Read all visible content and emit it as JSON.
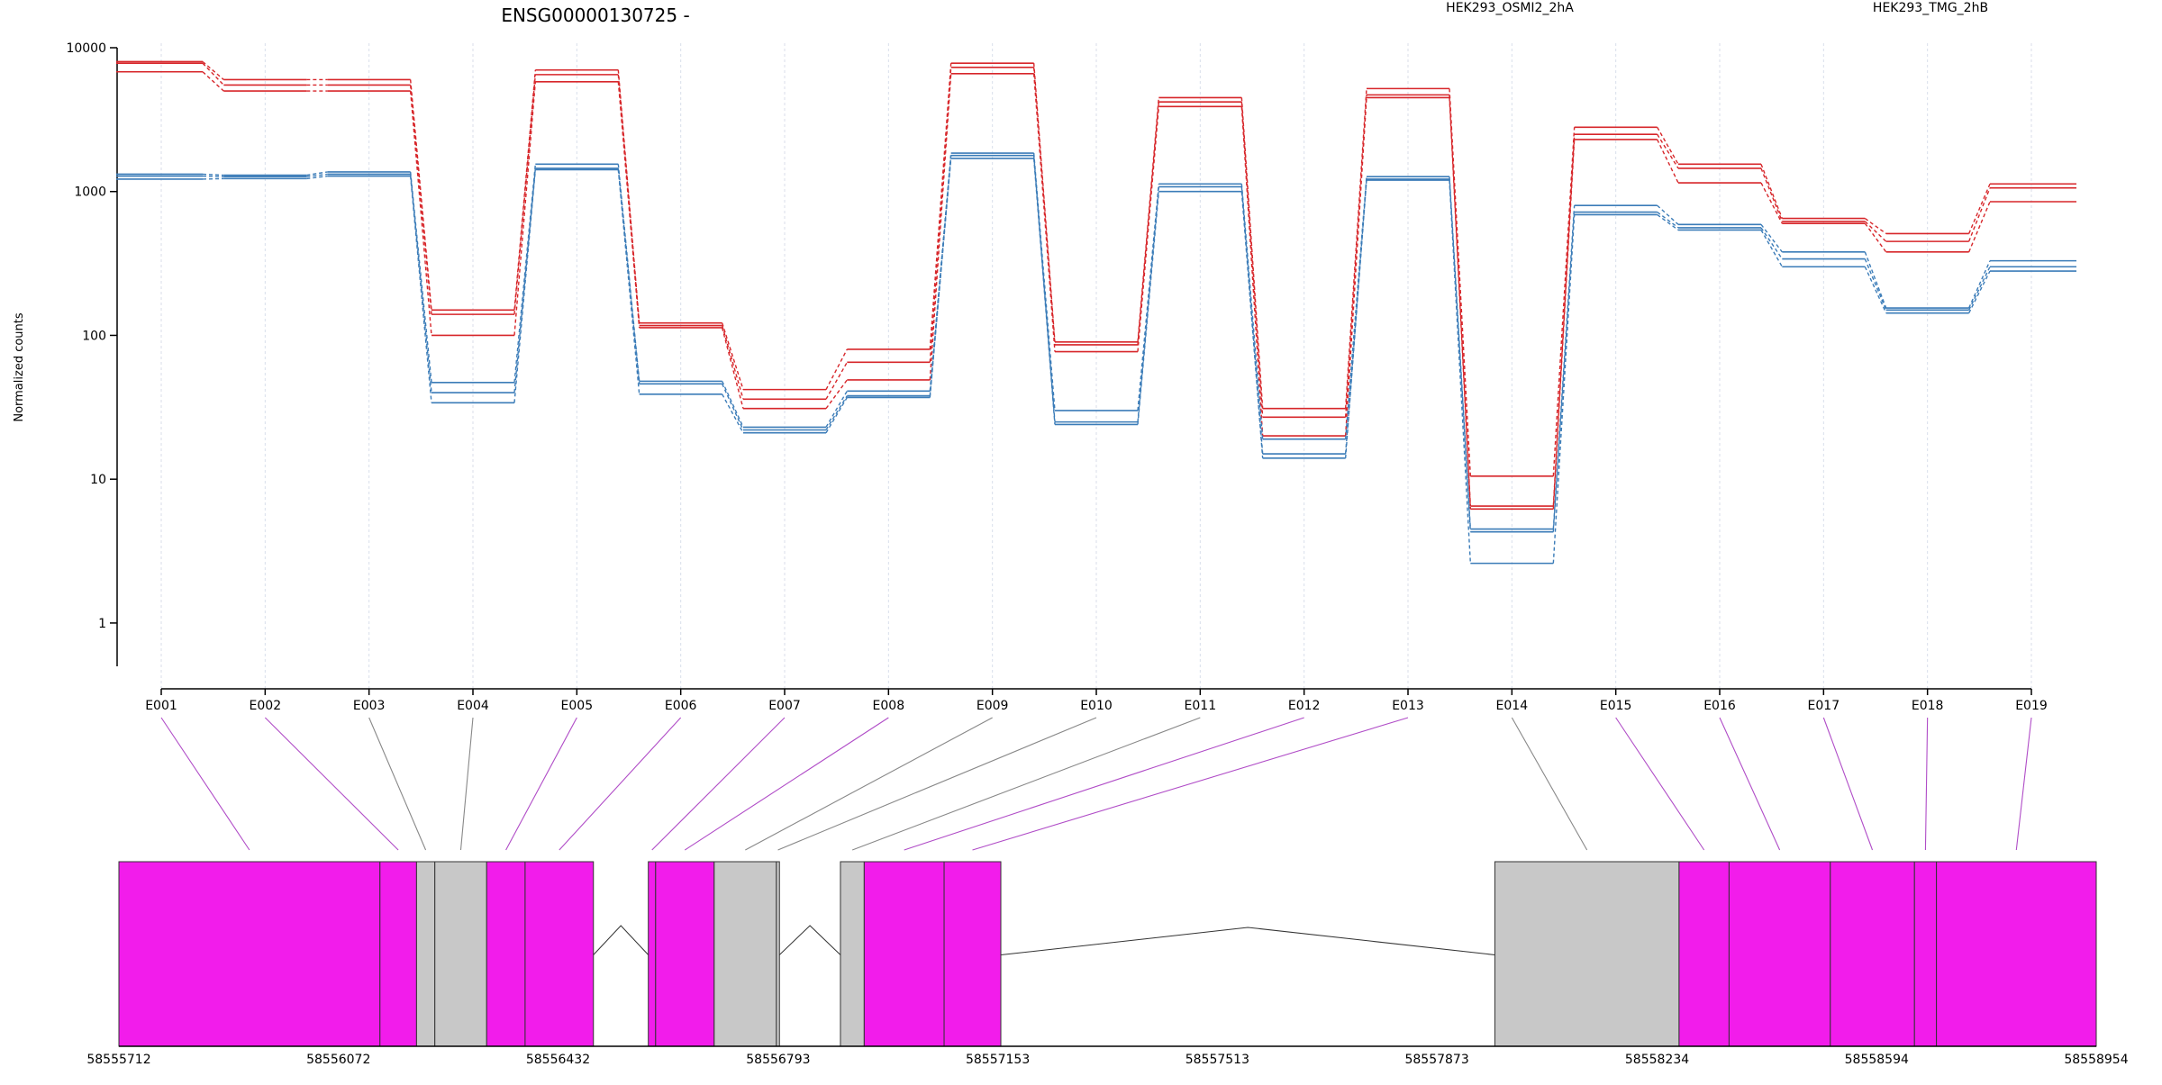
{
  "title": "ENSG00000130725 -",
  "legend": [
    {
      "name": "HEK293_OSMI2_2hA",
      "color": "#d7262a"
    },
    {
      "name": "HEK293_TMG_2hB",
      "color": "#3b7cb8"
    }
  ],
  "colors": {
    "exon_highlight": "#f21ceb",
    "exon_other": "#c8c8c8",
    "connector_highlight": "#b04cc7",
    "connector_other": "#888888",
    "grid": "#d9deea"
  },
  "chart_data": {
    "type": "line",
    "ylabel": "Normalized counts",
    "yscale": "log",
    "ylim": [
      0.5,
      10000
    ],
    "yticks": [
      1,
      10,
      100,
      1000,
      10000
    ],
    "ytick_labels": [
      "1",
      "10",
      "100",
      "1000",
      "10000"
    ],
    "categories": [
      "E001",
      "E002",
      "E003",
      "E004",
      "E005",
      "E006",
      "E007",
      "E008",
      "E009",
      "E010",
      "E011",
      "E012",
      "E013",
      "E014",
      "E015",
      "E016",
      "E017",
      "E018",
      "E019"
    ],
    "groups": [
      {
        "name": "HEK293_OSMI2_2hA",
        "color": "#d7262a",
        "samples": [
          [
            8000,
            6000,
            6000,
            150,
            7000,
            122,
            42,
            80,
            7800,
            90,
            4500,
            31,
            5200,
            10.5,
            2800,
            1550,
            650,
            510,
            1130
          ],
          [
            7800,
            5500,
            5500,
            140,
            6500,
            117,
            36,
            65,
            7300,
            86,
            4200,
            27,
            4700,
            6.5,
            2500,
            1450,
            620,
            450,
            1060
          ],
          [
            6800,
            5000,
            5000,
            100,
            5800,
            113,
            31,
            49,
            6600,
            77,
            3900,
            20,
            4500,
            6.2,
            2300,
            1150,
            600,
            380,
            850
          ]
        ]
      },
      {
        "name": "HEK293_TMG_2hB",
        "color": "#3b7cb8",
        "samples": [
          [
            1320,
            1300,
            1370,
            47,
            1550,
            48,
            23,
            41,
            1850,
            30,
            1130,
            19,
            1270,
            4.5,
            800,
            590,
            380,
            155,
            330
          ],
          [
            1280,
            1270,
            1320,
            40,
            1450,
            46,
            22,
            38,
            1780,
            25,
            1080,
            15,
            1220,
            4.3,
            720,
            560,
            340,
            150,
            300
          ],
          [
            1220,
            1230,
            1280,
            34,
            1420,
            39,
            21,
            37,
            1700,
            24,
            1000,
            14,
            1200,
            2.6,
            690,
            540,
            300,
            143,
            280
          ]
        ]
      }
    ]
  },
  "gene_model": {
    "xlim": [
      58555712,
      58558954
    ],
    "tick_values": [
      58555712,
      58556072,
      58556432,
      58556793,
      58557153,
      58557513,
      58557873,
      58558234,
      58558594,
      58558954
    ],
    "tick_labels": [
      "58555712",
      "58556072",
      "58556432",
      "58556793",
      "58557153",
      "58557513",
      "58557873",
      "58558234",
      "58558594",
      "58558954"
    ],
    "exons": [
      {
        "id": "E001",
        "start": 58555712,
        "end": 58556140,
        "highlight": true
      },
      {
        "id": "E002",
        "start": 58556140,
        "end": 58556200,
        "highlight": true
      },
      {
        "id": "E003",
        "start": 58556200,
        "end": 58556230,
        "highlight": false
      },
      {
        "id": "E004",
        "start": 58556230,
        "end": 58556315,
        "highlight": false
      },
      {
        "id": "E005",
        "start": 58556315,
        "end": 58556378,
        "highlight": true
      },
      {
        "id": "E006",
        "start": 58556378,
        "end": 58556490,
        "highlight": true
      },
      {
        "id": "E007",
        "start": 58556580,
        "end": 58556592,
        "highlight": true
      },
      {
        "id": "E008",
        "start": 58556592,
        "end": 58556688,
        "highlight": true
      },
      {
        "id": "E009",
        "start": 58556688,
        "end": 58556790,
        "highlight": false
      },
      {
        "id": "E010",
        "start": 58556790,
        "end": 58556795,
        "highlight": false
      },
      {
        "id": "E011",
        "start": 58556895,
        "end": 58556934,
        "highlight": false
      },
      {
        "id": "E012",
        "start": 58556934,
        "end": 58557065,
        "highlight": true
      },
      {
        "id": "E013",
        "start": 58557065,
        "end": 58557158,
        "highlight": true
      },
      {
        "id": "E014",
        "start": 58557968,
        "end": 58558270,
        "highlight": false
      },
      {
        "id": "E015",
        "start": 58558270,
        "end": 58558352,
        "highlight": true
      },
      {
        "id": "E016",
        "start": 58558352,
        "end": 58558518,
        "highlight": true
      },
      {
        "id": "E017",
        "start": 58558518,
        "end": 58558656,
        "highlight": true
      },
      {
        "id": "E018",
        "start": 58558656,
        "end": 58558692,
        "highlight": true
      },
      {
        "id": "E019",
        "start": 58558692,
        "end": 58558954,
        "highlight": true
      }
    ],
    "introns": [
      {
        "start": 58556490,
        "end": 58556580
      },
      {
        "start": 58556795,
        "end": 58556895
      },
      {
        "start": 58557158,
        "end": 58557968
      }
    ]
  }
}
